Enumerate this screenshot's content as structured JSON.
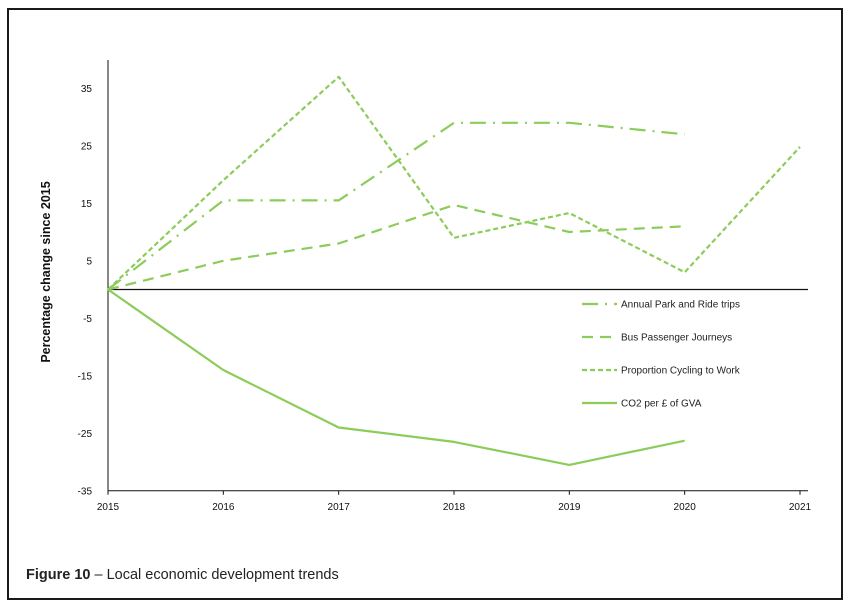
{
  "caption": {
    "label": "Figure 10",
    "separator": " – ",
    "text": "Local economic development trends"
  },
  "chart_data": {
    "type": "line",
    "ylabel": "Percentage change since 2015",
    "xlabel": "",
    "x": [
      "2015",
      "2016",
      "2017",
      "2018",
      "2019",
      "2020",
      "2021"
    ],
    "ylim": [
      -35,
      40
    ],
    "yticks": [
      35,
      25,
      15,
      5,
      -5,
      -15,
      -25,
      -35
    ],
    "grid": false,
    "legend_position": "right",
    "color": "#8ccc5a",
    "series": [
      {
        "name": "Annual Park and Ride trips",
        "style": "dash-dot",
        "values": [
          0,
          15.5,
          15.5,
          29,
          29,
          27,
          null
        ]
      },
      {
        "name": "Bus Passenger Journeys",
        "style": "long-dash",
        "values": [
          0,
          5,
          8,
          14.7,
          10,
          11,
          null
        ]
      },
      {
        "name": "Proportion Cycling to Work",
        "style": "short-dash",
        "values": [
          0,
          19,
          37,
          9,
          13.3,
          3,
          24.8
        ]
      },
      {
        "name": "CO2 per £ of GVA",
        "style": "solid",
        "values": [
          0,
          -14,
          -24,
          -26.5,
          -30.5,
          -26.3,
          null
        ]
      }
    ]
  }
}
